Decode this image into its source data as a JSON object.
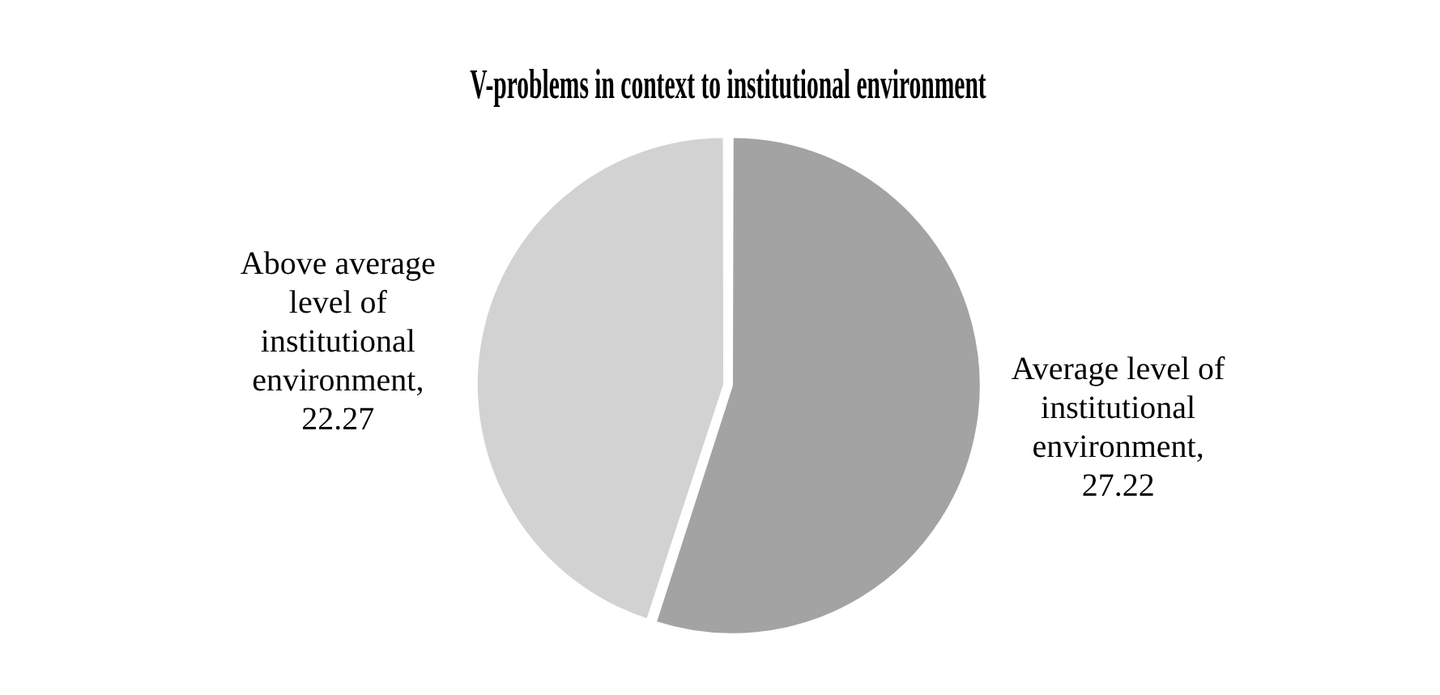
{
  "chart_data": {
    "type": "pie",
    "title": "V-problems in context to institutional environment",
    "categories": [
      null,
      null
    ],
    "values": [
      27.22,
      22.27
    ],
    "value_labels": [
      "Average level of institutional environment, 27.22",
      "Above average level of institutional environment, 22.27"
    ],
    "colors": [
      "#a3a3a3",
      "#d2d2d2"
    ],
    "legend": false
  }
}
